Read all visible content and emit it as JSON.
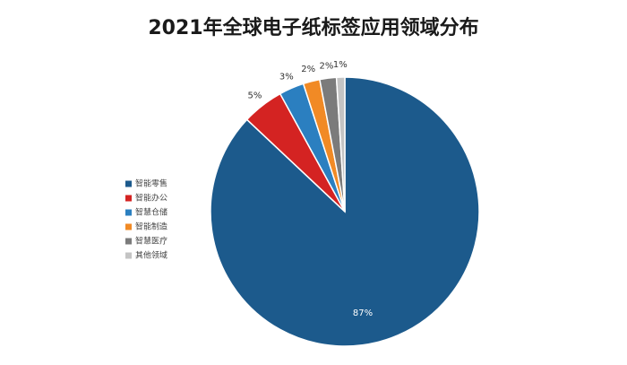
{
  "chart_data": {
    "type": "pie",
    "title": "2021年全球电子纸标签应用领域分布",
    "categories": [
      "智能零售",
      "智能办公",
      "智慧仓储",
      "智能制造",
      "智慧医疗",
      "其他领域"
    ],
    "values": [
      87,
      5,
      3,
      2,
      2,
      1
    ],
    "value_labels": [
      "87%",
      "5%",
      "3%",
      "2%",
      "2%",
      "1%"
    ],
    "colors": [
      "#1c5a8c",
      "#d42322",
      "#2b7fc0",
      "#f18a25",
      "#7b7b7b",
      "#c4c4c4"
    ],
    "legend": "left"
  }
}
